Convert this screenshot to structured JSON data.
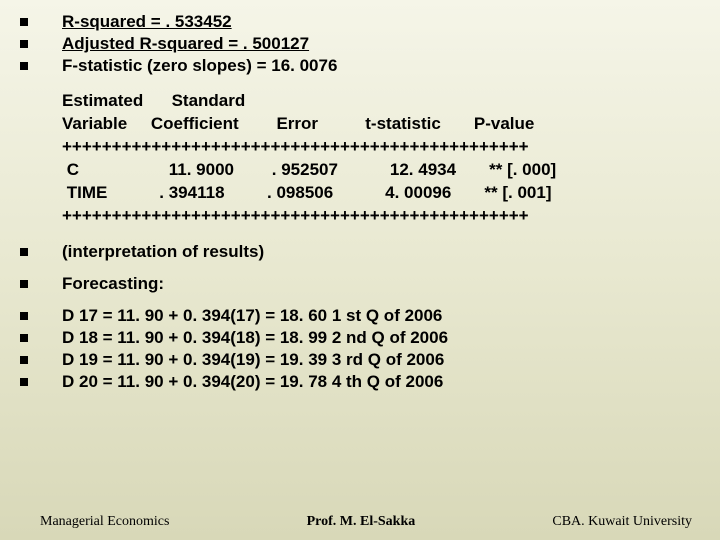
{
  "stats": {
    "r_squared": "R-squared = . 533452",
    "adj_r_squared": "Adjusted R-squared = . 500127",
    "f_stat": "F-statistic (zero slopes) = 16. 0076"
  },
  "table": {
    "header1": "Estimated      Standard",
    "header2": "Variable     Coefficient        Error          t-statistic       P-value",
    "divider": "+++++++++++++++++++++++++++++++++++++++++++++++",
    "row1": " C                   11. 9000        . 952507           12. 4934       ** [. 000]",
    "row2": " TIME           . 394118         . 098506           4. 00096       ** [. 001]"
  },
  "sections": {
    "interpretation": "(interpretation of results)",
    "forecasting": "Forecasting:"
  },
  "forecasts": {
    "d17": "D 17 = 11. 90 + 0. 394(17) = 18. 60 1 st Q of 2006",
    "d18": "D 18 = 11. 90 + 0. 394(18) = 18. 99  2 nd Q of 2006",
    "d19": "D 19 = 11. 90 + 0. 394(19) = 19. 39  3 rd Q of 2006",
    "d20": "D 20 = 11. 90 + 0. 394(20) = 19. 78  4 th Q of 2006"
  },
  "footer": {
    "left": "Managerial Economics",
    "center": "Prof. M. El-Sakka",
    "right": "CBA. Kuwait University"
  }
}
